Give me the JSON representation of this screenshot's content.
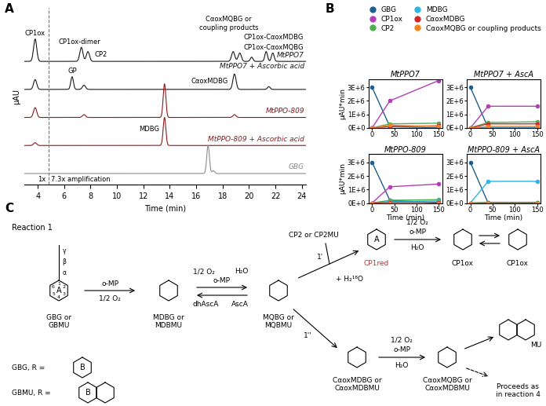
{
  "panel_labels": [
    "A",
    "B",
    "C"
  ],
  "chart_data": [
    {
      "type": "chromatogram",
      "xlabel": "Time (min)",
      "ylabel": "µAU",
      "xlim": [
        3,
        24.3
      ],
      "xticks": [
        4,
        6,
        8,
        10,
        12,
        14,
        16,
        18,
        20,
        22,
        24
      ],
      "tick_labels": "x",
      "traces": [
        {
          "name": "MtPPO7",
          "color": "#1a1a1a",
          "peaks": [
            [
              3.8,
              0.8,
              0.12
            ],
            [
              7.3,
              0.5,
              0.12
            ],
            [
              7.8,
              0.35,
              0.12
            ],
            [
              18.8,
              0.35,
              0.12
            ],
            [
              19.3,
              0.3,
              0.12
            ],
            [
              20.2,
              0.15,
              0.1
            ],
            [
              21.3,
              0.35,
              0.1
            ],
            [
              21.8,
              0.3,
              0.1
            ]
          ]
        },
        {
          "name": "MtPPO7 + Ascorbic acid",
          "color": "#1a1a1a",
          "peaks": [
            [
              3.8,
              0.35,
              0.12
            ],
            [
              6.6,
              0.45,
              0.1
            ],
            [
              7.5,
              0.15,
              0.12
            ],
            [
              18.9,
              0.55,
              0.12
            ],
            [
              21.5,
              0.1,
              0.1
            ]
          ]
        },
        {
          "name": "MtPPO-809",
          "color": "#8b1a1a",
          "peaks": [
            [
              3.8,
              0.35,
              0.12
            ],
            [
              7.5,
              0.1,
              0.12
            ],
            [
              13.6,
              1.2,
              0.1
            ],
            [
              18.9,
              0.1,
              0.12
            ]
          ]
        },
        {
          "name": "MtPPO-809 + Ascorbic acid",
          "color": "#8b1a1a",
          "peaks": [
            [
              3.8,
              0.1,
              0.12
            ],
            [
              13.6,
              1.0,
              0.1
            ]
          ]
        },
        {
          "name": "GBG",
          "color": "#8c8c8c",
          "peaks": [
            [
              16.9,
              1.0,
              0.1
            ],
            [
              17.3,
              0.1,
              0.1
            ]
          ]
        }
      ],
      "annotations": [
        {
          "text": "CP1ox",
          "trace": 0,
          "x": 3.8
        },
        {
          "text": "CP1ox-dimer",
          "trace": 0,
          "x": 7.3
        },
        {
          "text": "CP2",
          "trace": 0,
          "x": 7.8
        },
        {
          "text": "CαoxMQBG or\ncoupling products",
          "trace": 0,
          "x": 19.3
        },
        {
          "text": "CP1ox-CαoxMDBG",
          "trace": 0,
          "x": 21.3
        },
        {
          "text": "CP1ox-CαoxMQBG",
          "trace": 0,
          "x": 21.8
        },
        {
          "text": "GP",
          "trace": 1,
          "x": 6.6
        },
        {
          "text": "CαoxMDBG",
          "trace": 1,
          "x": 18.9
        },
        {
          "text": "MDBG",
          "trace": 3,
          "x": 13.6
        }
      ],
      "amplification": {
        "x": 4.8,
        "left": "1x",
        "right": "7.3x amplification"
      }
    },
    {
      "type": "line",
      "title": "MtPPO7",
      "ylabel": "µAU*min",
      "legend": "upper center",
      "marker": "circle",
      "x": [
        0,
        40,
        150
      ],
      "xlim": [
        -8,
        158
      ],
      "xticks": [
        0,
        50,
        100,
        150
      ],
      "ylim": [
        0,
        3600000
      ],
      "yticks": [
        {
          "value": 0,
          "label": "0E+0"
        },
        {
          "value": 1000000,
          "label": "1E+6"
        },
        {
          "value": 2000000,
          "label": "2E+6"
        },
        {
          "value": 3000000,
          "label": "3E+6"
        }
      ],
      "series": [
        {
          "name": "GBG",
          "color": "#1f5f8b",
          "values": [
            3000000,
            100000,
            0
          ]
        },
        {
          "name": "CP1ox",
          "color": "#b23fb5",
          "values": [
            0,
            2000000,
            3500000
          ]
        },
        {
          "name": "CP2",
          "color": "#4caf50",
          "values": [
            0,
            300000,
            350000
          ]
        },
        {
          "name": "MDBG",
          "color": "#29b6e8",
          "values": [
            0,
            0,
            0
          ]
        },
        {
          "name": "CαoxMDBG",
          "color": "#d62728",
          "values": [
            0,
            100000,
            150000
          ]
        },
        {
          "name": "CαoxMQBG or coupling products",
          "color": "#f58220",
          "values": [
            0,
            200000,
            100000
          ]
        }
      ]
    },
    {
      "type": "line",
      "title": "MtPPO7 + AscA",
      "marker": "circle",
      "x": [
        0,
        40,
        150
      ],
      "xlim": [
        -8,
        158
      ],
      "xticks": [
        0,
        50,
        100,
        150
      ],
      "ylim": [
        0,
        3600000
      ],
      "yticks": [
        {
          "value": 0,
          "label": "0E+0"
        },
        {
          "value": 1000000,
          "label": "1E+6"
        },
        {
          "value": 2000000,
          "label": "2E+6"
        },
        {
          "value": 3000000,
          "label": "3E+6"
        }
      ],
      "series": [
        {
          "name": "GBG",
          "color": "#1f5f8b",
          "values": [
            3000000,
            0,
            0
          ]
        },
        {
          "name": "CP1ox",
          "color": "#b23fb5",
          "values": [
            0,
            1600000,
            1600000
          ]
        },
        {
          "name": "CP2",
          "color": "#4caf50",
          "values": [
            0,
            400000,
            450000
          ]
        },
        {
          "name": "MDBG",
          "color": "#29b6e8",
          "values": [
            0,
            50000,
            50000
          ]
        },
        {
          "name": "CαoxMDBG",
          "color": "#d62728",
          "values": [
            0,
            300000,
            300000
          ]
        },
        {
          "name": "CαoxMQBG or coupling products",
          "color": "#f58220",
          "values": [
            0,
            100000,
            100000
          ]
        }
      ]
    },
    {
      "type": "line",
      "title": "MtPPO-809",
      "ylabel": "µAU*min",
      "xlabel": "Time (min)",
      "marker": "circle",
      "x": [
        0,
        40,
        150
      ],
      "xlim": [
        -8,
        158
      ],
      "xticks": [
        0,
        50,
        100,
        150
      ],
      "ylim": [
        0,
        3600000
      ],
      "yticks": [
        {
          "value": 0,
          "label": "0E+0"
        },
        {
          "value": 1000000,
          "label": "1E+6"
        },
        {
          "value": 2000000,
          "label": "2E+6"
        },
        {
          "value": 3000000,
          "label": "3E+6"
        }
      ],
      "series": [
        {
          "name": "GBG",
          "color": "#1f5f8b",
          "values": [
            3000000,
            200000,
            0
          ]
        },
        {
          "name": "CP1ox",
          "color": "#b23fb5",
          "values": [
            0,
            1200000,
            1400000
          ]
        },
        {
          "name": "CP2",
          "color": "#4caf50",
          "values": [
            0,
            200000,
            250000
          ]
        },
        {
          "name": "MDBG",
          "color": "#29b6e8",
          "values": [
            0,
            100000,
            150000
          ]
        },
        {
          "name": "CαoxMDBG",
          "color": "#d62728",
          "values": [
            0,
            50000,
            50000
          ]
        },
        {
          "name": "CαoxMQBG or coupling products",
          "color": "#f58220",
          "values": [
            0,
            0,
            0
          ]
        }
      ]
    },
    {
      "type": "line",
      "title": "MtPPO-809 + AscA",
      "xlabel": "Time (min)",
      "marker": "circle",
      "x": [
        0,
        40,
        150
      ],
      "xlim": [
        -8,
        158
      ],
      "xticks": [
        0,
        50,
        100,
        150
      ],
      "ylim": [
        0,
        3600000
      ],
      "yticks": [
        {
          "value": 0,
          "label": "0E+0"
        },
        {
          "value": 1000000,
          "label": "1E+6"
        },
        {
          "value": 2000000,
          "label": "2E+6"
        },
        {
          "value": 3000000,
          "label": "3E+6"
        }
      ],
      "series": [
        {
          "name": "GBG",
          "color": "#1f5f8b",
          "values": [
            3000000,
            0,
            0
          ]
        },
        {
          "name": "CP1ox",
          "color": "#b23fb5",
          "values": [
            0,
            50000,
            50000
          ]
        },
        {
          "name": "CP2",
          "color": "#4caf50",
          "values": [
            0,
            20000,
            20000
          ]
        },
        {
          "name": "MDBG",
          "color": "#29b6e8",
          "values": [
            0,
            1600000,
            1600000
          ]
        },
        {
          "name": "CαoxMDBG",
          "color": "#d62728",
          "values": [
            0,
            0,
            0
          ]
        },
        {
          "name": "CαoxMQBG or coupling products",
          "color": "#f58220",
          "values": [
            0,
            0,
            0
          ]
        }
      ]
    }
  ],
  "scheme": {
    "title": "Reaction 1",
    "gbg": "GBG or\nGBMU",
    "mdbg": "MDBG or\nMDBMU",
    "mqbg": "MQBG or\nMQBMU",
    "cp2": "CP2 or CP2MU",
    "cp1red": "CP1red",
    "cp1ox": "CP1ox",
    "water18": "+ H₂¹⁸O",
    "step1p": "1'",
    "step1pp": "1''",
    "cadbg": "CαoxMDBG or\nCαoxMDBMU",
    "caqbg": "CαoxMQBG or\nCαoxMDBMU",
    "mu": "MU",
    "proceeds": "Proceeds as\nin reaction 4",
    "gbg_r": "GBG, R =",
    "gbmu_r": "GBMU, R =",
    "omp": "o-MP",
    "o2": "1/2 O₂",
    "h2o": "H₂O",
    "dhasca": "dhAscA",
    "asca": "AscA",
    "ring_a": "A",
    "ring_b": "B",
    "atoms": [
      "1",
      "2",
      "3",
      "4",
      "5",
      "6"
    ],
    "chain": [
      "α",
      "β",
      "γ"
    ]
  }
}
